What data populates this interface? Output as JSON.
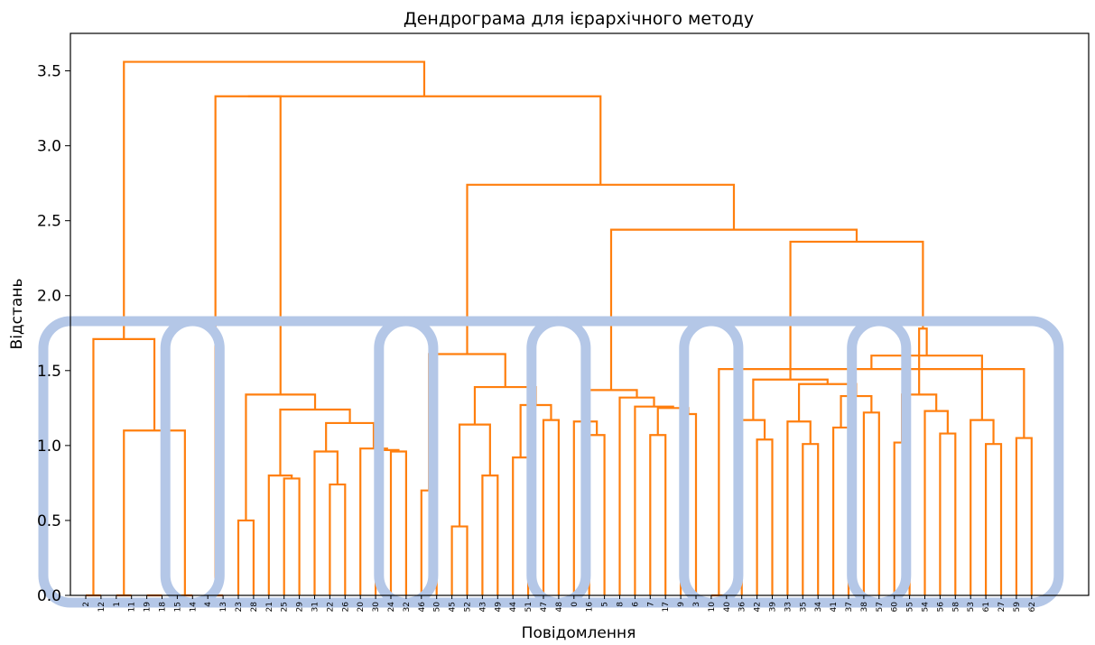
{
  "chart_data": {
    "type": "dendrogram",
    "title": "Дендрограма для ієрархічного методу",
    "xlabel": "Повідомлення",
    "ylabel": "Відстань",
    "ylim": [
      0,
      3.75
    ],
    "yticks": [
      0.0,
      0.5,
      1.0,
      1.5,
      2.0,
      2.5,
      3.0,
      3.5
    ],
    "ytick_labels": [
      "0.0",
      "0.5",
      "1.0",
      "1.5",
      "2.0",
      "2.5",
      "3.0",
      "3.5"
    ],
    "line_color": "#ff7f0e",
    "cluster_box_color": "#b4c7e7",
    "grid": false,
    "leaves": [
      "2",
      "12",
      "1",
      "11",
      "19",
      "18",
      "15",
      "14",
      "4",
      "13",
      "23",
      "28",
      "21",
      "25",
      "29",
      "31",
      "22",
      "26",
      "20",
      "30",
      "24",
      "32",
      "46",
      "50",
      "45",
      "52",
      "43",
      "49",
      "44",
      "51",
      "47",
      "48",
      "0",
      "16",
      "5",
      "8",
      "6",
      "7",
      "17",
      "9",
      "3",
      "10",
      "40",
      "36",
      "42",
      "39",
      "33",
      "35",
      "34",
      "41",
      "37",
      "38",
      "57",
      "60",
      "55",
      "54",
      "56",
      "58",
      "53",
      "61",
      "27",
      "59",
      "62"
    ],
    "links": [
      {
        "height": 0.0,
        "left": {
          "leaf": 0
        },
        "right": {
          "leaf": 1
        }
      },
      {
        "height": 0.0,
        "left": {
          "leaf": 2
        },
        "right": {
          "leaf": 3
        }
      },
      {
        "height": 0.0,
        "left": {
          "leaf": 4
        },
        "right": {
          "leaf": 5
        }
      },
      {
        "height": 0.0,
        "left": {
          "leaf": 6
        },
        "right": {
          "leaf": 7
        }
      },
      {
        "height": 1.1,
        "left": {
          "node": 1
        },
        "right": {
          "node": 3
        }
      },
      {
        "height": 1.71,
        "left": {
          "node": 0
        },
        "right": {
          "node": 4
        }
      },
      {
        "height": 0.5,
        "left": {
          "leaf": 10
        },
        "right": {
          "leaf": 11
        }
      },
      {
        "height": 0.78,
        "left": {
          "leaf": 13
        },
        "right": {
          "leaf": 14
        }
      },
      {
        "height": 0.8,
        "left": {
          "leaf": 12
        },
        "right": {
          "node": 7
        }
      },
      {
        "height": 0.74,
        "left": {
          "leaf": 16
        },
        "right": {
          "leaf": 17
        }
      },
      {
        "height": 0.96,
        "left": {
          "leaf": 15
        },
        "right": {
          "node": 9
        }
      },
      {
        "height": 0.96,
        "left": {
          "leaf": 20
        },
        "right": {
          "leaf": 21
        }
      },
      {
        "height": 0.97,
        "left": {
          "leaf": 19
        },
        "right": {
          "node": 11
        }
      },
      {
        "height": 0.98,
        "left": {
          "leaf": 18
        },
        "right": {
          "node": 12
        }
      },
      {
        "height": 1.15,
        "left": {
          "node": 10
        },
        "right": {
          "node": 13
        }
      },
      {
        "height": 1.24,
        "left": {
          "node": 8
        },
        "right": {
          "node": 14
        }
      },
      {
        "height": 1.34,
        "left": {
          "node": 6
        },
        "right": {
          "node": 15
        }
      },
      {
        "height": 0.0,
        "left": {
          "leaf": 8
        },
        "right": {
          "leaf": 9
        }
      },
      {
        "height": 3.33,
        "left": {
          "node": 17
        },
        "right": {
          "node": 16
        }
      },
      {
        "height": 0.7,
        "left": {
          "leaf": 22
        },
        "right": {
          "leaf": 23
        }
      },
      {
        "height": 0.46,
        "left": {
          "leaf": 24
        },
        "right": {
          "leaf": 25
        }
      },
      {
        "height": 0.8,
        "left": {
          "leaf": 26
        },
        "right": {
          "leaf": 27
        }
      },
      {
        "height": 1.14,
        "left": {
          "node": 20
        },
        "right": {
          "node": 21
        }
      },
      {
        "height": 0.92,
        "left": {
          "leaf": 28
        },
        "right": {
          "leaf": 29
        }
      },
      {
        "height": 1.17,
        "left": {
          "leaf": 30
        },
        "right": {
          "leaf": 31
        }
      },
      {
        "height": 1.27,
        "left": {
          "node": 23
        },
        "right": {
          "node": 24
        }
      },
      {
        "height": 1.39,
        "left": {
          "node": 22
        },
        "right": {
          "node": 25
        }
      },
      {
        "height": 1.61,
        "left": {
          "node": 19
        },
        "right": {
          "node": 26
        }
      },
      {
        "height": 1.07,
        "left": {
          "leaf": 33
        },
        "right": {
          "leaf": 34
        }
      },
      {
        "height": 1.16,
        "left": {
          "leaf": 32
        },
        "right": {
          "node": 28
        }
      },
      {
        "height": 1.07,
        "left": {
          "leaf": 37
        },
        "right": {
          "leaf": 38
        }
      },
      {
        "height": 1.21,
        "left": {
          "leaf": 39
        },
        "right": {
          "leaf": 40
        }
      },
      {
        "height": 1.25,
        "left": {
          "node": 30
        },
        "right": {
          "node": 31
        }
      },
      {
        "height": 1.26,
        "left": {
          "leaf": 36
        },
        "right": {
          "node": 32
        }
      },
      {
        "height": 1.32,
        "left": {
          "leaf": 35
        },
        "right": {
          "node": 33
        }
      },
      {
        "height": 1.37,
        "left": {
          "node": 29
        },
        "right": {
          "node": 34
        }
      },
      {
        "height": 0.0,
        "left": {
          "leaf": 41
        },
        "right": {
          "leaf": 42
        }
      },
      {
        "height": 1.04,
        "left": {
          "leaf": 44
        },
        "right": {
          "leaf": 45
        }
      },
      {
        "height": 1.17,
        "left": {
          "leaf": 43
        },
        "right": {
          "node": 37
        }
      },
      {
        "height": 1.01,
        "left": {
          "leaf": 47
        },
        "right": {
          "leaf": 48
        }
      },
      {
        "height": 1.16,
        "left": {
          "leaf": 46
        },
        "right": {
          "node": 39
        }
      },
      {
        "height": 1.12,
        "left": {
          "leaf": 49
        },
        "right": {
          "leaf": 50
        }
      },
      {
        "height": 1.22,
        "left": {
          "leaf": 51
        },
        "right": {
          "leaf": 52
        }
      },
      {
        "height": 1.33,
        "left": {
          "node": 41
        },
        "right": {
          "node": 42
        }
      },
      {
        "height": 1.41,
        "left": {
          "node": 40
        },
        "right": {
          "node": 43
        }
      },
      {
        "height": 1.44,
        "left": {
          "node": 38
        },
        "right": {
          "node": 44
        }
      },
      {
        "height": 1.02,
        "left": {
          "leaf": 53
        },
        "right": {
          "leaf": 54
        }
      },
      {
        "height": 1.08,
        "left": {
          "leaf": 56
        },
        "right": {
          "leaf": 57
        }
      },
      {
        "height": 1.23,
        "left": {
          "leaf": 55
        },
        "right": {
          "node": 47
        }
      },
      {
        "height": 1.34,
        "left": {
          "node": 46
        },
        "right": {
          "node": 48
        }
      },
      {
        "height": 1.01,
        "left": {
          "leaf": 59
        },
        "right": {
          "leaf": 60
        }
      },
      {
        "height": 1.17,
        "left": {
          "leaf": 58
        },
        "right": {
          "node": 50
        }
      },
      {
        "height": 1.05,
        "left": {
          "leaf": 61
        },
        "right": {
          "leaf": 62
        }
      },
      {
        "height": 1.51,
        "left": {
          "node": 36
        },
        "right": {
          "node": 52
        }
      },
      {
        "height": 1.6,
        "left": {
          "node": 51
        },
        "right": {
          "node": 53
        }
      },
      {
        "height": 1.78,
        "left": {
          "node": 49
        },
        "right": {
          "node": 54
        }
      },
      {
        "height": 2.36,
        "left": {
          "node": 45
        },
        "right": {
          "node": 55
        }
      },
      {
        "height": 2.44,
        "left": {
          "node": 35
        },
        "right": {
          "node": 56
        }
      },
      {
        "height": 2.74,
        "left": {
          "node": 27
        },
        "right": {
          "node": 57
        }
      },
      {
        "height": 3.33,
        "left": {
          "node": 18
        },
        "right": {
          "node": 58
        }
      },
      {
        "height": 3.56,
        "left": {
          "node": 5
        },
        "right": {
          "node": 59
        }
      }
    ],
    "cluster_boxes": [
      {
        "from_leaf": 0,
        "to_leaf": 7
      },
      {
        "from_leaf": 8,
        "to_leaf": 21
      },
      {
        "from_leaf": 22,
        "to_leaf": 31
      },
      {
        "from_leaf": 32,
        "to_leaf": 41
      },
      {
        "from_leaf": 42,
        "to_leaf": 52
      },
      {
        "from_leaf": 53,
        "to_leaf": 62
      }
    ]
  }
}
